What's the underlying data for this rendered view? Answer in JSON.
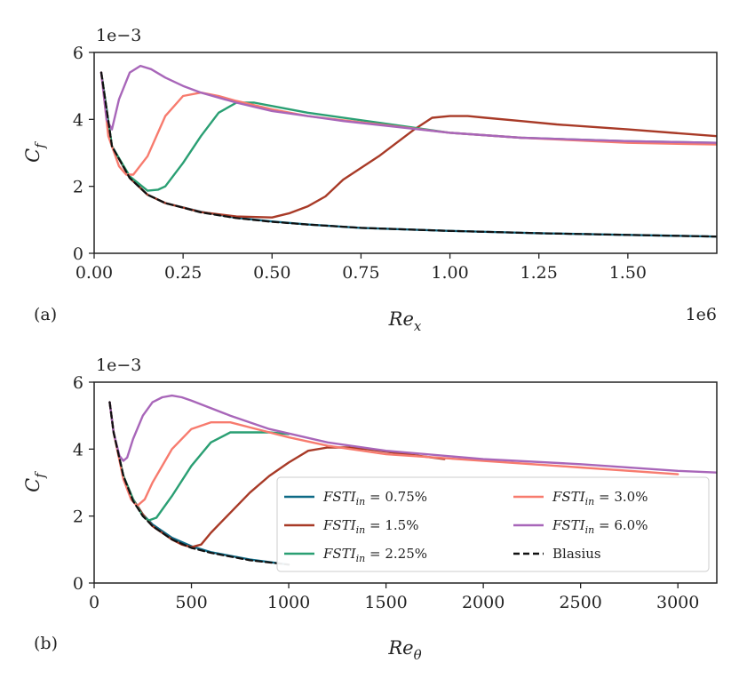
{
  "colors": {
    "fsti_075": "#0e6a86",
    "fsti_15": "#a83a27",
    "fsti_225": "#2a9f73",
    "fsti_30": "#f77b6e",
    "fsti_60": "#a866b9",
    "blasius": "#111111"
  },
  "chart_data": [
    {
      "type": "line",
      "panel_label": "(a)",
      "xlabel_base": "Re",
      "xlabel_sub": "x",
      "ylabel_base": "C",
      "ylabel_sub": "f",
      "x_scale_label": "1e6",
      "y_scale_label": "1e−3",
      "xlim": [
        0,
        1.75
      ],
      "ylim": [
        0,
        6
      ],
      "x_ticks": [
        0.0,
        0.25,
        0.5,
        0.75,
        1.0,
        1.25,
        1.5
      ],
      "x_tick_labels": [
        "0.00",
        "0.25",
        "0.50",
        "0.75",
        "1.00",
        "1.25",
        "1.50"
      ],
      "y_ticks": [
        0,
        2,
        4,
        6
      ],
      "y_tick_labels": [
        "0",
        "2",
        "4",
        "6"
      ],
      "series": [
        {
          "name": "FSTI = 0.75%",
          "color_key": "fsti_075",
          "dashed": false,
          "x": [
            0.02,
            0.05,
            0.1,
            0.15,
            0.2,
            0.3,
            0.4,
            0.5,
            0.6,
            0.75,
            1.0,
            1.25,
            1.5,
            1.75
          ],
          "y": [
            5.4,
            3.2,
            2.25,
            1.75,
            1.5,
            1.24,
            1.06,
            0.95,
            0.86,
            0.76,
            0.67,
            0.6,
            0.55,
            0.5
          ]
        },
        {
          "name": "FSTI = 1.5%",
          "color_key": "fsti_15",
          "dashed": false,
          "x": [
            0.02,
            0.05,
            0.1,
            0.15,
            0.2,
            0.3,
            0.4,
            0.5,
            0.55,
            0.6,
            0.65,
            0.7,
            0.8,
            0.9,
            0.95,
            1.0,
            1.05,
            1.1,
            1.2,
            1.3,
            1.5,
            1.75
          ],
          "y": [
            5.4,
            3.2,
            2.25,
            1.75,
            1.5,
            1.23,
            1.1,
            1.07,
            1.2,
            1.4,
            1.7,
            2.2,
            2.9,
            3.7,
            4.05,
            4.1,
            4.1,
            4.05,
            3.95,
            3.85,
            3.7,
            3.5
          ]
        },
        {
          "name": "FSTI = 2.25%",
          "color_key": "fsti_225",
          "dashed": false,
          "x": [
            0.02,
            0.05,
            0.1,
            0.15,
            0.18,
            0.2,
            0.25,
            0.3,
            0.35,
            0.4,
            0.45,
            0.5,
            0.6,
            0.8,
            1.0,
            1.2,
            1.5,
            1.75
          ],
          "y": [
            5.4,
            3.2,
            2.3,
            1.87,
            1.9,
            2.0,
            2.7,
            3.5,
            4.2,
            4.5,
            4.5,
            4.4,
            4.2,
            3.9,
            3.6,
            3.45,
            3.35,
            3.3
          ]
        },
        {
          "name": "FSTI = 3.0%",
          "color_key": "fsti_30",
          "dashed": false,
          "x": [
            0.02,
            0.04,
            0.07,
            0.09,
            0.11,
            0.15,
            0.2,
            0.25,
            0.3,
            0.35,
            0.4,
            0.5,
            0.6,
            0.8,
            1.0,
            1.2,
            1.5,
            1.75
          ],
          "y": [
            5.4,
            3.5,
            2.6,
            2.35,
            2.35,
            2.9,
            4.1,
            4.7,
            4.8,
            4.7,
            4.55,
            4.3,
            4.1,
            3.85,
            3.6,
            3.45,
            3.3,
            3.25
          ]
        },
        {
          "name": "FSTI = 6.0%",
          "color_key": "fsti_60",
          "dashed": false,
          "x": [
            0.02,
            0.035,
            0.05,
            0.07,
            0.1,
            0.13,
            0.16,
            0.2,
            0.25,
            0.3,
            0.4,
            0.5,
            0.7,
            1.0,
            1.2,
            1.5,
            1.75
          ],
          "y": [
            5.4,
            4.0,
            3.7,
            4.6,
            5.4,
            5.6,
            5.5,
            5.25,
            5.0,
            4.8,
            4.5,
            4.25,
            3.95,
            3.6,
            3.45,
            3.35,
            3.3
          ]
        },
        {
          "name": "Blasius",
          "color_key": "blasius",
          "dashed": true,
          "x": [
            0.02,
            0.05,
            0.1,
            0.15,
            0.2,
            0.3,
            0.4,
            0.5,
            0.6,
            0.75,
            1.0,
            1.25,
            1.5,
            1.75
          ],
          "y": [
            5.4,
            3.2,
            2.25,
            1.75,
            1.5,
            1.22,
            1.05,
            0.94,
            0.86,
            0.76,
            0.67,
            0.6,
            0.55,
            0.5
          ]
        }
      ]
    },
    {
      "type": "line",
      "panel_label": "(b)",
      "xlabel_base": "Re",
      "xlabel_sub": "θ",
      "ylabel_base": "C",
      "ylabel_sub": "f",
      "y_scale_label": "1e−3",
      "xlim": [
        0,
        3200
      ],
      "ylim": [
        0,
        6
      ],
      "x_ticks": [
        0,
        500,
        1000,
        1500,
        2000,
        2500,
        3000
      ],
      "x_tick_labels": [
        "0",
        "500",
        "1000",
        "1500",
        "2000",
        "2500",
        "3000"
      ],
      "y_ticks": [
        0,
        2,
        4,
        6
      ],
      "y_tick_labels": [
        "0",
        "2",
        "4",
        "6"
      ],
      "legend": {
        "position": "lower-right",
        "columns": 2,
        "entries": [
          {
            "prefix": "FSTI",
            "sub": "in",
            "value": " = 0.75%",
            "color_key": "fsti_075",
            "dashed": false
          },
          {
            "prefix": "FSTI",
            "sub": "in",
            "value": " = 3.0%",
            "color_key": "fsti_30",
            "dashed": false
          },
          {
            "prefix": "FSTI",
            "sub": "in",
            "value": " = 1.5%",
            "color_key": "fsti_15",
            "dashed": false
          },
          {
            "prefix": "FSTI",
            "sub": "in",
            "value": " = 6.0%",
            "color_key": "fsti_60",
            "dashed": false
          },
          {
            "prefix": "FSTI",
            "sub": "in",
            "value": " = 2.25%",
            "color_key": "fsti_225",
            "dashed": false
          },
          {
            "label": "Blasius",
            "color_key": "blasius",
            "dashed": true
          }
        ]
      },
      "series": [
        {
          "name": "FSTI = 0.75%",
          "color_key": "fsti_075",
          "dashed": false,
          "x": [
            80,
            100,
            150,
            200,
            250,
            300,
            400,
            500,
            600,
            800,
            1000
          ],
          "y": [
            5.4,
            4.5,
            3.2,
            2.5,
            2.05,
            1.75,
            1.35,
            1.1,
            0.92,
            0.7,
            0.55
          ]
        },
        {
          "name": "FSTI = 1.5%",
          "color_key": "fsti_15",
          "dashed": false,
          "x": [
            80,
            100,
            150,
            200,
            250,
            300,
            400,
            450,
            500,
            550,
            600,
            700,
            800,
            900,
            1000,
            1100,
            1200,
            1300,
            1400,
            1600,
            1800
          ],
          "y": [
            5.4,
            4.5,
            3.2,
            2.5,
            2.05,
            1.7,
            1.3,
            1.15,
            1.07,
            1.15,
            1.5,
            2.1,
            2.7,
            3.2,
            3.6,
            3.95,
            4.05,
            4.05,
            4.0,
            3.85,
            3.7
          ]
        },
        {
          "name": "FSTI = 2.25%",
          "color_key": "fsti_225",
          "dashed": false,
          "x": [
            80,
            100,
            150,
            200,
            250,
            280,
            320,
            400,
            500,
            600,
            700,
            800,
            900,
            1000
          ],
          "y": [
            5.4,
            4.5,
            3.2,
            2.5,
            2.0,
            1.87,
            1.95,
            2.6,
            3.5,
            4.2,
            4.5,
            4.5,
            4.5,
            4.45
          ]
        },
        {
          "name": "FSTI = 3.0%",
          "color_key": "fsti_30",
          "dashed": false,
          "x": [
            80,
            100,
            150,
            190,
            220,
            260,
            300,
            400,
            500,
            600,
            700,
            800,
            1000,
            1200,
            1500,
            2000,
            2500,
            3000
          ],
          "y": [
            5.4,
            4.5,
            3.1,
            2.5,
            2.3,
            2.5,
            3.0,
            4.0,
            4.6,
            4.8,
            4.8,
            4.65,
            4.35,
            4.1,
            3.85,
            3.65,
            3.45,
            3.25
          ]
        },
        {
          "name": "FSTI = 6.0%",
          "color_key": "fsti_60",
          "dashed": false,
          "x": [
            80,
            100,
            130,
            150,
            170,
            200,
            250,
            300,
            350,
            400,
            450,
            500,
            700,
            900,
            1200,
            1500,
            2000,
            2500,
            3000,
            3200
          ],
          "y": [
            5.4,
            4.5,
            3.8,
            3.65,
            3.75,
            4.3,
            5.0,
            5.4,
            5.55,
            5.6,
            5.55,
            5.45,
            5.0,
            4.6,
            4.2,
            3.95,
            3.7,
            3.55,
            3.35,
            3.3
          ]
        },
        {
          "name": "Blasius",
          "color_key": "blasius",
          "dashed": true,
          "x": [
            80,
            100,
            150,
            200,
            250,
            300,
            400,
            500,
            600,
            800,
            1000
          ],
          "y": [
            5.4,
            4.5,
            3.2,
            2.45,
            2.0,
            1.7,
            1.3,
            1.05,
            0.9,
            0.68,
            0.55
          ]
        }
      ]
    }
  ]
}
